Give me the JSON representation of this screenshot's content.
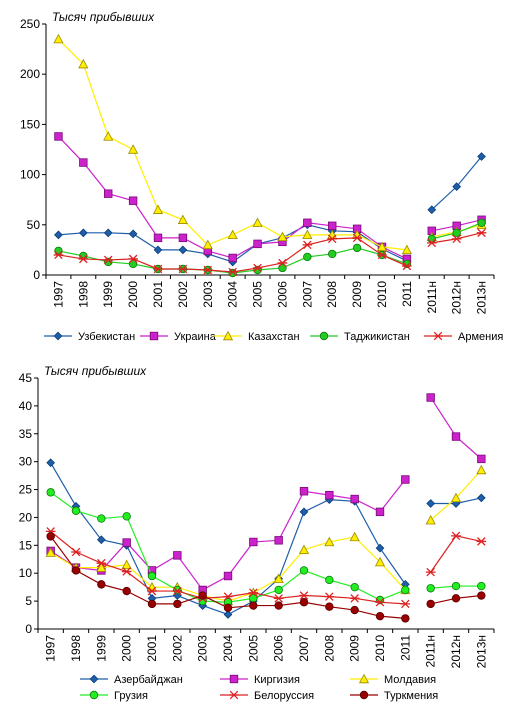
{
  "chart_data": [
    {
      "type": "line",
      "unit_label": "Тысяч прибывших",
      "categories": [
        "1997",
        "1998",
        "1999",
        "2000",
        "2001",
        "2002",
        "2003",
        "2004",
        "2005",
        "2006",
        "2007",
        "2008",
        "2009",
        "2010",
        "2011",
        "2011н",
        "2012н",
        "2013н"
      ],
      "gap_after_index": 14,
      "ylim": [
        0,
        250
      ],
      "yticks": [
        0,
        50,
        100,
        150,
        200,
        250
      ],
      "grid": false,
      "legend_position": "bottom",
      "series": [
        {
          "name": "Узбекистан",
          "color": "#1f5faa",
          "marker": "diamond",
          "values": [
            40,
            42,
            42,
            41,
            25,
            25,
            21,
            13,
            31,
            37,
            50,
            44,
            43,
            26,
            14,
            65,
            88,
            118
          ]
        },
        {
          "name": "Украина",
          "color": "#cc22cc",
          "marker": "square",
          "values": [
            138,
            112,
            81,
            74,
            37,
            37,
            24,
            17,
            31,
            33,
            52,
            49,
            46,
            28,
            16,
            44,
            49,
            55
          ]
        },
        {
          "name": "Казахстан",
          "color": "#ffee00",
          "marker": "triangle",
          "values": [
            235,
            210,
            138,
            125,
            65,
            55,
            30,
            40,
            52,
            38,
            40,
            40,
            40,
            28,
            25,
            38,
            43,
            50
          ]
        },
        {
          "name": "Таджикистан",
          "color": "#22cc22",
          "marker": "circle",
          "values": [
            24,
            19,
            13,
            11,
            6,
            6,
            5,
            2,
            5,
            7,
            18,
            21,
            27,
            20,
            11,
            36,
            42,
            52
          ]
        },
        {
          "name": "Армения",
          "color": "#dd2222",
          "marker": "star",
          "values": [
            20,
            16,
            15,
            16,
            6,
            6,
            5,
            3,
            7,
            12,
            30,
            36,
            37,
            20,
            9,
            32,
            36,
            42
          ]
        }
      ]
    },
    {
      "type": "line",
      "unit_label": "Тысяч прибывших",
      "categories": [
        "1997",
        "1998",
        "1999",
        "2000",
        "2001",
        "2002",
        "2003",
        "2004",
        "2005",
        "2006",
        "2007",
        "2008",
        "2009",
        "2010",
        "2011",
        "2011н",
        "2012н",
        "2013н"
      ],
      "gap_after_index": 14,
      "ylim": [
        0,
        45
      ],
      "yticks": [
        0,
        5,
        10,
        15,
        20,
        25,
        30,
        35,
        40,
        45
      ],
      "grid": false,
      "legend_position": "bottom",
      "series": [
        {
          "name": "Азербайджан",
          "color": "#1f5faa",
          "marker": "diamond",
          "values": [
            29.8,
            22,
            16,
            15,
            5.5,
            6,
            4.2,
            2.6,
            5,
            9,
            21,
            23.2,
            22.9,
            14.5,
            8,
            22.5,
            22.5,
            23.5
          ]
        },
        {
          "name": "Киргизия",
          "color": "#cc22cc",
          "marker": "square",
          "values": [
            14,
            11,
            10.5,
            15.5,
            10.5,
            13.2,
            7,
            9.5,
            15.6,
            15.9,
            24.7,
            24,
            23.3,
            21,
            26.8,
            41.5,
            34.5,
            30.5
          ]
        },
        {
          "name": "Молдавия",
          "color": "#ffee00",
          "marker": "triangle",
          "values": [
            13.7,
            11,
            11,
            11.5,
            7.5,
            7.5,
            6,
            5,
            6.5,
            9,
            14.2,
            15.6,
            16.5,
            12,
            7,
            19.5,
            23.5,
            28.5
          ]
        },
        {
          "name": "Грузия",
          "color": "#22ee22",
          "marker": "circle",
          "values": [
            24.5,
            21.2,
            19.8,
            20.2,
            9.5,
            7,
            5,
            4.8,
            5.5,
            7,
            10.5,
            8.8,
            7.5,
            5.2,
            7,
            7.3,
            7.7,
            7.7
          ]
        },
        {
          "name": "Белоруссия",
          "color": "#dd2222",
          "marker": "star",
          "values": [
            17.5,
            13.8,
            11.8,
            10.3,
            6.8,
            6.8,
            5.5,
            5.8,
            6.5,
            5.5,
            6,
            5.8,
            5.5,
            4.8,
            4.5,
            10.2,
            16.7,
            15.7
          ]
        },
        {
          "name": "Туркмения",
          "color": "#990000",
          "marker": "dot",
          "values": [
            16.6,
            10.5,
            8,
            6.8,
            4.5,
            4.5,
            6,
            3.8,
            4.2,
            4.2,
            4.8,
            4,
            3.4,
            2.3,
            1.9,
            4.5,
            5.5,
            6
          ]
        }
      ]
    }
  ]
}
